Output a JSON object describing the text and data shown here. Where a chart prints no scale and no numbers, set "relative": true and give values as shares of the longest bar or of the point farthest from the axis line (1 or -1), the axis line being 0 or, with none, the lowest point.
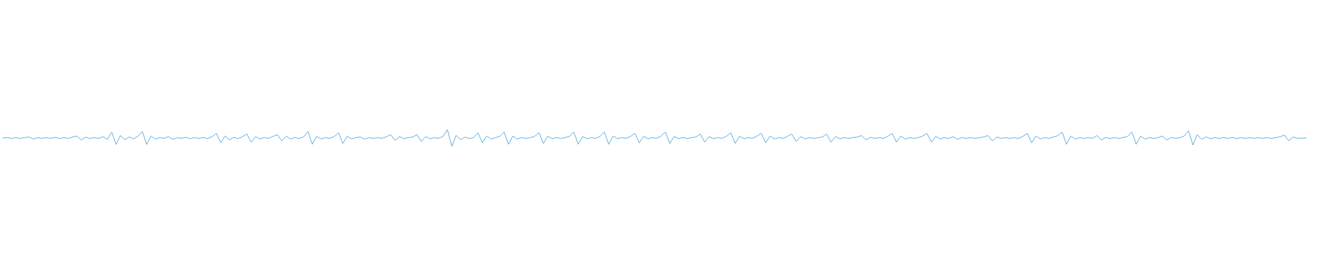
{
  "chart_data": {
    "type": "line",
    "relative": true,
    "line_style": "solid",
    "color": "#5dade2",
    "categories": [
      null,
      null,
      null,
      null,
      null,
      null,
      null,
      null,
      null,
      null,
      null,
      null,
      null,
      null,
      null,
      null,
      null,
      null,
      null,
      null,
      null,
      null,
      null,
      null,
      null,
      null,
      null,
      null,
      null,
      null,
      null,
      null,
      null,
      null,
      null,
      null,
      null,
      null,
      null,
      null,
      null,
      null,
      null,
      null,
      null,
      null,
      null,
      null,
      null,
      null,
      null,
      null,
      null,
      null,
      null,
      null,
      null,
      null,
      null,
      null,
      null,
      null,
      null,
      null,
      null,
      null,
      null,
      null,
      null,
      null,
      null,
      null,
      null,
      null,
      null,
      null,
      null,
      null,
      null,
      null,
      null,
      null,
      null,
      null,
      null,
      null,
      null,
      null,
      null,
      null,
      null,
      null,
      null,
      null,
      null,
      null,
      null,
      null,
      null,
      null,
      null,
      null,
      null,
      null,
      null,
      null,
      null,
      null,
      null,
      null,
      null,
      null,
      null,
      null,
      null,
      null,
      null,
      null,
      null,
      null,
      null,
      null,
      null,
      null,
      null,
      null,
      null,
      null,
      null,
      null,
      null,
      null,
      null,
      null,
      null,
      null,
      null,
      null,
      null,
      null,
      null,
      null,
      null,
      null,
      null,
      null,
      null,
      null,
      null,
      null,
      null,
      null,
      null,
      null,
      null,
      null,
      null,
      null,
      null,
      null,
      null,
      null,
      null,
      null,
      null,
      null,
      null,
      null,
      null,
      null,
      null,
      null,
      null,
      null,
      null,
      null,
      null,
      null,
      null,
      null,
      null,
      null,
      null,
      null,
      null,
      null,
      null,
      null,
      null,
      null,
      null,
      null,
      null,
      null,
      null,
      null,
      null,
      null,
      null,
      null,
      null,
      null,
      null,
      null,
      null,
      null,
      null,
      null,
      null,
      null,
      null,
      null,
      null,
      null,
      null,
      null,
      null,
      null,
      null,
      null,
      null,
      null,
      null,
      null,
      null,
      null,
      null,
      null,
      null,
      null,
      null,
      null,
      null,
      null,
      null,
      null,
      null,
      null,
      null,
      null,
      null,
      null,
      null,
      null,
      null,
      null,
      null,
      null,
      null,
      null,
      null,
      null,
      null,
      null,
      null,
      null,
      null,
      null,
      null,
      null,
      null,
      null,
      null,
      null,
      null,
      null,
      null,
      null,
      null,
      null,
      null,
      null,
      null,
      null,
      null,
      null,
      null,
      null,
      null,
      null,
      null,
      null,
      null,
      null,
      null,
      null,
      null,
      null,
      null,
      null,
      null,
      null,
      null,
      null,
      null,
      null,
      null,
      null,
      null,
      null
    ],
    "values": [
      0.5,
      0.52,
      0.48,
      0.52,
      0.48,
      0.52,
      0.56,
      0.44,
      0.52,
      0.48,
      0.52,
      0.48,
      0.54,
      0.47,
      0.52,
      0.48,
      0.56,
      0.62,
      0.38,
      0.55,
      0.47,
      0.52,
      0.48,
      0.58,
      0.42,
      0.86,
      0.11,
      0.65,
      0.4,
      0.56,
      0.45,
      0.6,
      0.9,
      0.11,
      0.62,
      0.44,
      0.52,
      0.48,
      0.58,
      0.42,
      0.52,
      0.48,
      0.54,
      0.46,
      0.52,
      0.48,
      0.53,
      0.47,
      0.58,
      0.78,
      0.21,
      0.62,
      0.38,
      0.54,
      0.47,
      0.58,
      0.74,
      0.25,
      0.58,
      0.45,
      0.52,
      0.48,
      0.6,
      0.7,
      0.32,
      0.6,
      0.44,
      0.53,
      0.47,
      0.56,
      0.9,
      0.12,
      0.6,
      0.45,
      0.52,
      0.48,
      0.58,
      0.82,
      0.17,
      0.6,
      0.45,
      0.52,
      0.56,
      0.44,
      0.52,
      0.48,
      0.52,
      0.48,
      0.58,
      0.7,
      0.35,
      0.58,
      0.46,
      0.52,
      0.56,
      0.7,
      0.29,
      0.58,
      0.46,
      0.52,
      0.48,
      0.6,
      1,
      0,
      0.66,
      0.4,
      0.55,
      0.47,
      0.53,
      0.82,
      0.21,
      0.62,
      0.44,
      0.52,
      0.6,
      0.86,
      0.12,
      0.62,
      0.44,
      0.52,
      0.48,
      0.52,
      0.6,
      0.82,
      0.17,
      0.6,
      0.46,
      0.52,
      0.48,
      0.52,
      0.6,
      0.86,
      0.12,
      0.58,
      0.46,
      0.52,
      0.48,
      0.6,
      0.86,
      0.12,
      0.62,
      0.46,
      0.52,
      0.48,
      0.6,
      0.78,
      0.21,
      0.6,
      0.46,
      0.52,
      0.48,
      0.62,
      0.86,
      0.17,
      0.6,
      0.46,
      0.53,
      0.47,
      0.52,
      0.56,
      0.74,
      0.25,
      0.58,
      0.46,
      0.52,
      0.48,
      0.6,
      0.82,
      0.17,
      0.6,
      0.46,
      0.52,
      0.48,
      0.62,
      0.78,
      0.21,
      0.62,
      0.45,
      0.52,
      0.48,
      0.6,
      0.74,
      0.29,
      0.58,
      0.46,
      0.52,
      0.48,
      0.52,
      0.56,
      0.74,
      0.25,
      0.58,
      0.46,
      0.52,
      0.48,
      0.52,
      0.56,
      0.65,
      0.38,
      0.54,
      0.48,
      0.52,
      0.48,
      0.6,
      0.78,
      0.25,
      0.62,
      0.44,
      0.52,
      0.48,
      0.52,
      0.62,
      0.78,
      0.25,
      0.6,
      0.45,
      0.52,
      0.48,
      0.58,
      0.42,
      0.52,
      0.48,
      0.52,
      0.48,
      0.52,
      0.56,
      0.65,
      0.32,
      0.56,
      0.48,
      0.52,
      0.48,
      0.52,
      0.47,
      0.6,
      0.78,
      0.21,
      0.62,
      0.45,
      0.52,
      0.48,
      0.56,
      0.64,
      0.86,
      0.12,
      0.62,
      0.44,
      0.52,
      0.48,
      0.52,
      0.48,
      0.65,
      0.38,
      0.53,
      0.47,
      0.52,
      0.48,
      0.52,
      0.6,
      0.86,
      0.12,
      0.62,
      0.44,
      0.52,
      0.48,
      0.52,
      0.62,
      0.38,
      0.53,
      0.48,
      0.52,
      0.62,
      0.94,
      0.08,
      0.7,
      0.42,
      0.56,
      0.46,
      0.52,
      0.48,
      0.52,
      0.48,
      0.53,
      0.47,
      0.52,
      0.48,
      0.52,
      0.48,
      0.52,
      0.48,
      0.52,
      0.48,
      0.52,
      0.58,
      0.67,
      0.33,
      0.56,
      0.48,
      0.5,
      0.5
    ]
  }
}
